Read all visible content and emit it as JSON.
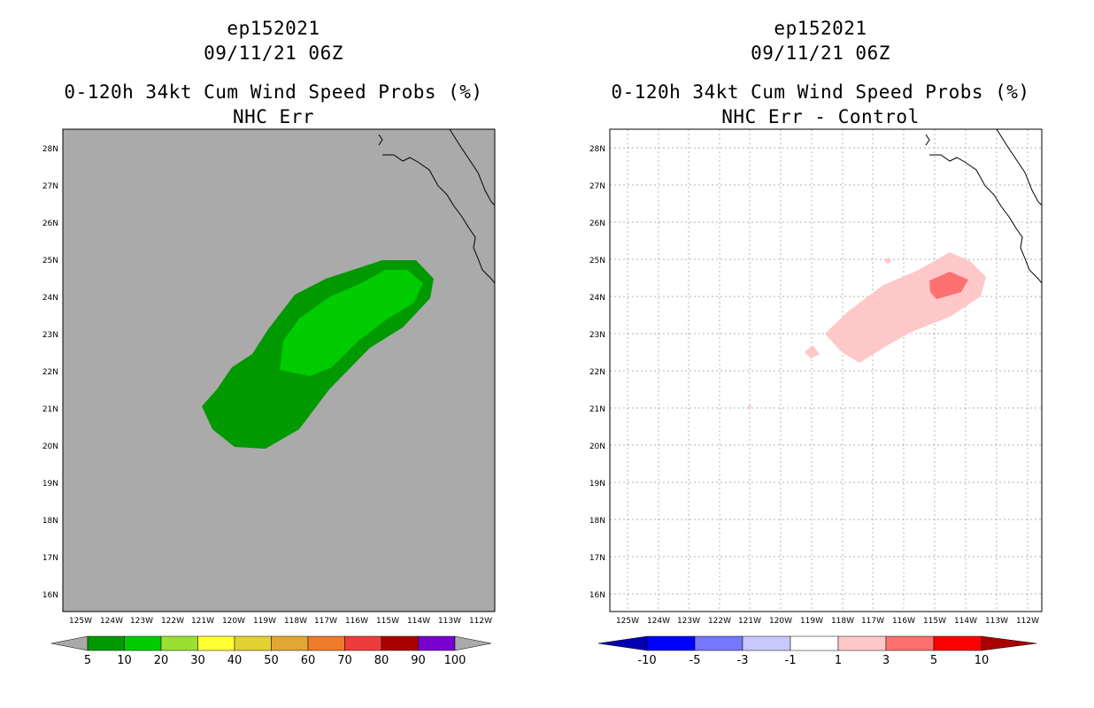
{
  "panels": [
    {
      "storm_id": "ep152021",
      "datetime": "09/11/21 06Z",
      "product": "0-120h 34kt Cum Wind Speed Probs (%)",
      "subtitle": "NHC Err",
      "lat_labels": [
        "28N",
        "27N",
        "26N",
        "25N",
        "24N",
        "23N",
        "22N",
        "21N",
        "20N",
        "19N",
        "18N",
        "17N",
        "16N"
      ],
      "lon_labels": [
        "125W",
        "124W",
        "123W",
        "122W",
        "121W",
        "120W",
        "119W",
        "118W",
        "117W",
        "116W",
        "115W",
        "114W",
        "113W",
        "112W"
      ],
      "colorbar": {
        "labels": [
          "5",
          "10",
          "20",
          "30",
          "40",
          "50",
          "60",
          "70",
          "80",
          "90",
          "100"
        ],
        "colors": [
          "#009900",
          "#00cc00",
          "#99e033",
          "#ffff33",
          "#e0d233",
          "#e0a733",
          "#ee7c2c",
          "#ee3c3c",
          "#aa0000",
          "#7700cc"
        ]
      },
      "background_color": "#aaaaaa"
    },
    {
      "storm_id": "ep152021",
      "datetime": "09/11/21 06Z",
      "product": "0-120h 34kt Cum Wind Speed Probs (%)",
      "subtitle": "NHC Err - Control",
      "lat_labels": [
        "28N",
        "27N",
        "26N",
        "25N",
        "24N",
        "23N",
        "22N",
        "21N",
        "20N",
        "19N",
        "18N",
        "17N",
        "16N"
      ],
      "lon_labels": [
        "125W",
        "124W",
        "123W",
        "122W",
        "121W",
        "120W",
        "119W",
        "118W",
        "117W",
        "116W",
        "115W",
        "114W",
        "113W",
        "112W"
      ],
      "colorbar": {
        "labels": [
          "-10",
          "-5",
          "-3",
          "-1",
          "1",
          "3",
          "5",
          "10"
        ],
        "colors": [
          "#0000b0",
          "#0000ff",
          "#7777ff",
          "#c8c8ff",
          "#ffffff",
          "#ffc8c8",
          "#ff7070",
          "#ff0000",
          "#aa0000"
        ]
      },
      "background_color": "#ffffff"
    }
  ]
}
